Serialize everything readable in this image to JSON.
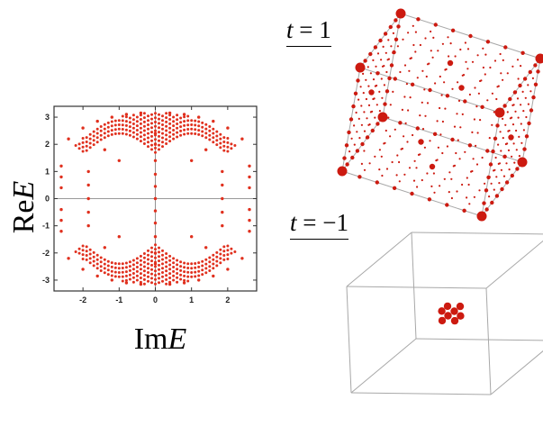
{
  "scatter_panel": {
    "ylabel_prefix": "Re",
    "ylabel_var": "E",
    "xlabel_prefix": "Im",
    "xlabel_var": "E",
    "marker_color": "#e0301e"
  },
  "cube_panels": [
    {
      "label_var": "t",
      "label_eq": " = 1",
      "sphere_color": "#cc1a10",
      "edge_color": "#a8a8a8",
      "sphere_distribution": "spread across the full cube lattice, largest at corners"
    },
    {
      "label_var": "t",
      "label_eq": " = −1",
      "sphere_color": "#cc1a10",
      "edge_color": "#a8a8a8",
      "sphere_distribution": "small cluster of spheres at the cube centre"
    }
  ],
  "chart_data": {
    "type": "scatter",
    "title": "",
    "xlabel": "ImE",
    "ylabel": "ReE",
    "xlim": [
      -2.8,
      2.8
    ],
    "ylim": [
      -3.4,
      3.4
    ],
    "x_ticks": [
      -2,
      -1,
      0,
      1,
      2
    ],
    "x_tick_labels": [
      "-2",
      "-1",
      "0",
      "1",
      "2"
    ],
    "y_ticks": [
      -3,
      -2,
      -1,
      0,
      1,
      2,
      3
    ],
    "y_tick_labels": [
      "-3",
      "-2",
      "-1",
      "0",
      "1",
      "2",
      "3"
    ],
    "grid": false,
    "zero_lines": true,
    "series": [
      {
        "points": [
          [
            -2.6,
            1.2
          ],
          [
            -2.6,
            0.8
          ],
          [
            -2.6,
            0.4
          ],
          [
            -2.6,
            -0.4
          ],
          [
            -2.6,
            -0.8
          ],
          [
            -2.6,
            -1.2
          ],
          [
            -1.85,
            1.0
          ],
          [
            -1.85,
            0.5
          ],
          [
            -1.85,
            0.0
          ],
          [
            -1.85,
            -0.5
          ],
          [
            -1.85,
            -1.0
          ],
          [
            0,
            1.4
          ],
          [
            0,
            0.9
          ],
          [
            0,
            0.45
          ],
          [
            0,
            0.0
          ],
          [
            0,
            -0.45
          ],
          [
            0,
            -0.9
          ],
          [
            0,
            -1.4
          ],
          [
            1.85,
            1.0
          ],
          [
            1.85,
            0.5
          ],
          [
            1.85,
            0.0
          ],
          [
            1.85,
            -0.5
          ],
          [
            1.85,
            -1.0
          ],
          [
            2.6,
            1.2
          ],
          [
            2.6,
            0.8
          ],
          [
            2.6,
            0.4
          ],
          [
            2.6,
            -0.4
          ],
          [
            2.6,
            -0.8
          ],
          [
            2.6,
            -1.2
          ],
          [
            -2.4,
            2.2
          ],
          [
            -2.0,
            2.6
          ],
          [
            -1.6,
            2.85
          ],
          [
            -1.2,
            3.0
          ],
          [
            -0.8,
            3.1
          ],
          [
            -0.4,
            3.15
          ],
          [
            0.4,
            3.15
          ],
          [
            0.8,
            3.1
          ],
          [
            1.2,
            3.0
          ],
          [
            1.6,
            2.85
          ],
          [
            2.0,
            2.6
          ],
          [
            2.4,
            2.2
          ],
          [
            -2.4,
            -2.2
          ],
          [
            -2.0,
            -2.6
          ],
          [
            -1.6,
            -2.85
          ],
          [
            -1.2,
            -3.0
          ],
          [
            -0.8,
            -3.1
          ],
          [
            -0.4,
            -3.15
          ],
          [
            0.4,
            -3.15
          ],
          [
            0.8,
            -3.1
          ],
          [
            1.2,
            -3.0
          ],
          [
            1.6,
            -2.85
          ],
          [
            2.0,
            -2.6
          ],
          [
            2.4,
            -2.2
          ],
          [
            -1.0,
            1.4
          ],
          [
            1.0,
            1.4
          ],
          [
            -1.0,
            -1.4
          ],
          [
            1.0,
            -1.4
          ],
          [
            -1.4,
            1.8
          ],
          [
            1.4,
            1.8
          ],
          [
            -1.4,
            -1.8
          ],
          [
            1.4,
            -1.8
          ],
          [
            0,
            2.4
          ],
          [
            0,
            -2.4
          ],
          [
            0,
            2.0
          ],
          [
            0,
            -2.0
          ]
        ]
      }
    ]
  }
}
